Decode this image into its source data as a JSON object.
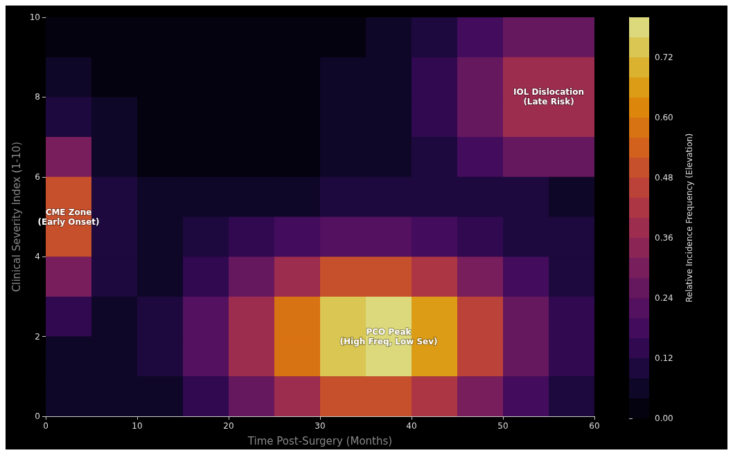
{
  "chart_data": {
    "type": "heatmap",
    "xlabel": "Time Post-Surgery (Months)",
    "ylabel": "Clinical Severity Index (1-10)",
    "clabel": "Relative Incidence Frequency (Elevation)",
    "x": [
      2.5,
      7.5,
      12.5,
      17.5,
      22.5,
      27.5,
      32.5,
      37.5,
      42.5,
      47.5,
      52.5,
      57.5
    ],
    "y": [
      9.5,
      8.5,
      7.5,
      6.5,
      5.5,
      4.5,
      3.5,
      2.5,
      1.5,
      0.5
    ],
    "cells": [
      [
        0.02,
        0.02,
        0.02,
        0.02,
        0.02,
        0.02,
        0.03,
        0.05,
        0.1,
        0.18,
        0.24,
        0.24
      ],
      [
        0.04,
        0.02,
        0.02,
        0.02,
        0.02,
        0.02,
        0.04,
        0.06,
        0.14,
        0.27,
        0.39,
        0.39
      ],
      [
        0.11,
        0.04,
        0.02,
        0.02,
        0.02,
        0.03,
        0.04,
        0.06,
        0.14,
        0.27,
        0.39,
        0.39
      ],
      [
        0.29,
        0.06,
        0.02,
        0.02,
        0.02,
        0.03,
        0.04,
        0.06,
        0.1,
        0.18,
        0.24,
        0.24
      ],
      [
        0.5,
        0.09,
        0.04,
        0.04,
        0.05,
        0.07,
        0.08,
        0.09,
        0.1,
        0.08,
        0.08,
        0.07
      ],
      [
        0.5,
        0.09,
        0.05,
        0.08,
        0.12,
        0.17,
        0.22,
        0.22,
        0.19,
        0.15,
        0.11,
        0.08
      ],
      [
        0.29,
        0.08,
        0.07,
        0.14,
        0.25,
        0.38,
        0.48,
        0.5,
        0.43,
        0.3,
        0.18,
        0.1
      ],
      [
        0.12,
        0.06,
        0.1,
        0.2,
        0.37,
        0.57,
        0.73,
        0.76,
        0.65,
        0.45,
        0.26,
        0.13
      ],
      [
        0.05,
        0.05,
        0.1,
        0.2,
        0.37,
        0.57,
        0.73,
        0.76,
        0.65,
        0.45,
        0.26,
        0.13
      ],
      [
        0.04,
        0.05,
        0.07,
        0.14,
        0.25,
        0.38,
        0.48,
        0.5,
        0.43,
        0.3,
        0.18,
        0.1
      ]
    ],
    "clim": [
      0,
      0.8
    ],
    "cticks": [
      {
        "value": 0,
        "label": "0.00"
      },
      {
        "value": 0.12,
        "label": "0.12"
      },
      {
        "value": 0.24,
        "label": "0.24"
      },
      {
        "value": 0.36,
        "label": "0.36"
      },
      {
        "value": 0.48,
        "label": "0.48"
      },
      {
        "value": 0.6,
        "label": "0.60"
      },
      {
        "value": 0.72,
        "label": "0.72"
      }
    ],
    "xlim": [
      0,
      60
    ],
    "xticks": [
      0,
      10,
      20,
      30,
      40,
      50,
      60
    ],
    "ylim": [
      0,
      10
    ],
    "yticks": [
      0,
      2,
      4,
      6,
      8,
      10
    ],
    "annotations": [
      "CME Zone\n(Early Onset)",
      "PCO Peak\n(High Freq, Low Sev)",
      "IOL Dislocation\n(Late Risk)"
    ],
    "grid": false
  }
}
